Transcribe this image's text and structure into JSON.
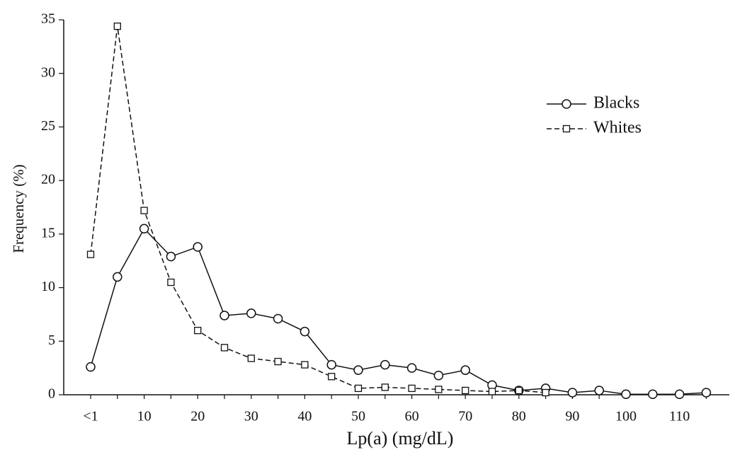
{
  "chart_data": {
    "type": "line",
    "xlabel": "Lp(a) (mg/dL)",
    "ylabel": "Frequency (%)",
    "categories": [
      "<1",
      null,
      "10",
      null,
      "20",
      null,
      "30",
      null,
      "40",
      null,
      "50",
      null,
      "60",
      null,
      "70",
      null,
      "80",
      null,
      "90",
      null,
      "100",
      null,
      "110",
      null
    ],
    "series": [
      {
        "name": "Blacks",
        "color": "#111111",
        "marker": "circle",
        "dashed": false,
        "values": [
          2.6,
          11.0,
          15.5,
          12.9,
          13.8,
          7.4,
          7.6,
          7.1,
          5.9,
          2.8,
          2.3,
          2.8,
          2.5,
          1.8,
          2.3,
          0.9,
          0.4,
          0.6,
          0.2,
          0.4,
          0.05,
          0.05,
          0.05,
          0.2
        ]
      },
      {
        "name": "Whites",
        "color": "#111111",
        "marker": "square",
        "dashed": true,
        "values": [
          13.1,
          34.4,
          17.2,
          10.5,
          6.0,
          4.4,
          3.4,
          3.1,
          2.8,
          1.7,
          0.6,
          0.7,
          0.6,
          0.5,
          0.4,
          0.3,
          0.4,
          0.2,
          null,
          null,
          null,
          null,
          null,
          null
        ]
      }
    ],
    "ylim": [
      0,
      35
    ],
    "yticks": [
      0,
      5,
      10,
      15,
      20,
      25,
      30,
      35
    ],
    "legend": "upper-right",
    "grid": false
  }
}
